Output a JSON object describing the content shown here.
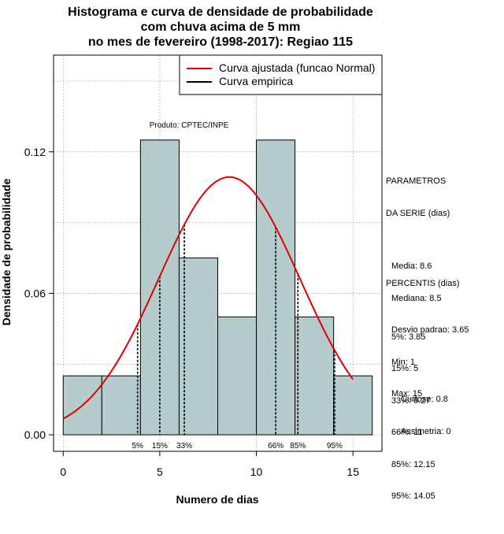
{
  "title": {
    "line1": "Histograma e curva de densidade de probabilidade",
    "line2": "com chuva acima de 5 mm",
    "line3": "no mes de fevereiro (1998-2017): Regiao 115"
  },
  "credit": "Produto: CPTEC/INPE",
  "legend": {
    "fitted": "Curva ajustada (funcao Normal)",
    "empirical": "Curva empirica"
  },
  "parameters": {
    "heading": [
      "PARAMETROS",
      "DA SERIE (dias)"
    ],
    "lines": [
      "Media: 8.6",
      "Mediana: 8.5",
      "Desvio padrao: 3.65",
      "Min: 1",
      "Max: 15"
    ]
  },
  "percentiles": {
    "heading": "PERCENTIS (dias)",
    "lines": [
      "5%: 3.85",
      "15%: 5",
      "33%: 6.27",
      "66%: 11",
      "85%: 12.15",
      "95%: 14.05"
    ]
  },
  "shape": {
    "lines": [
      "Curtose: 0.8",
      "Assimetria: 0"
    ]
  },
  "colors": {
    "bar_fill": "#b6cccc",
    "fitted_curve": "#e00000",
    "grid": "#a9a9a9"
  },
  "chart_data": {
    "type": "bar",
    "xlabel": "Numero de dias",
    "ylabel": "Densidade de probabilidade",
    "xlim": [
      -0.5,
      16.5
    ],
    "ylim": [
      -0.007,
      0.161
    ],
    "xticks": [
      0,
      5,
      10,
      15
    ],
    "yticks": [
      0.0,
      0.06,
      0.12
    ],
    "ytick_labels": [
      "0.00",
      "0.06",
      "0.12"
    ],
    "grid": true,
    "legend_position": "top-right",
    "histogram": {
      "bins": [
        {
          "from": 0,
          "to": 2,
          "density": 0.025
        },
        {
          "from": 2,
          "to": 4,
          "density": 0.025
        },
        {
          "from": 4,
          "to": 6,
          "density": 0.125
        },
        {
          "from": 6,
          "to": 8,
          "density": 0.075
        },
        {
          "from": 8,
          "to": 10,
          "density": 0.05
        },
        {
          "from": 10,
          "to": 12,
          "density": 0.125
        },
        {
          "from": 12,
          "to": 14,
          "density": 0.05
        },
        {
          "from": 14,
          "to": 16,
          "density": 0.025
        }
      ]
    },
    "fitted_normal": {
      "mean": 8.6,
      "sd": 3.65,
      "x_from": 0,
      "x_to": 15
    },
    "percentile_markers": [
      {
        "label": "5%",
        "x": 3.85
      },
      {
        "label": "15%",
        "x": 5
      },
      {
        "label": "33%",
        "x": 6.27
      },
      {
        "label": "66%",
        "x": 11
      },
      {
        "label": "85%",
        "x": 12.15
      },
      {
        "label": "95%",
        "x": 14.05
      }
    ]
  }
}
